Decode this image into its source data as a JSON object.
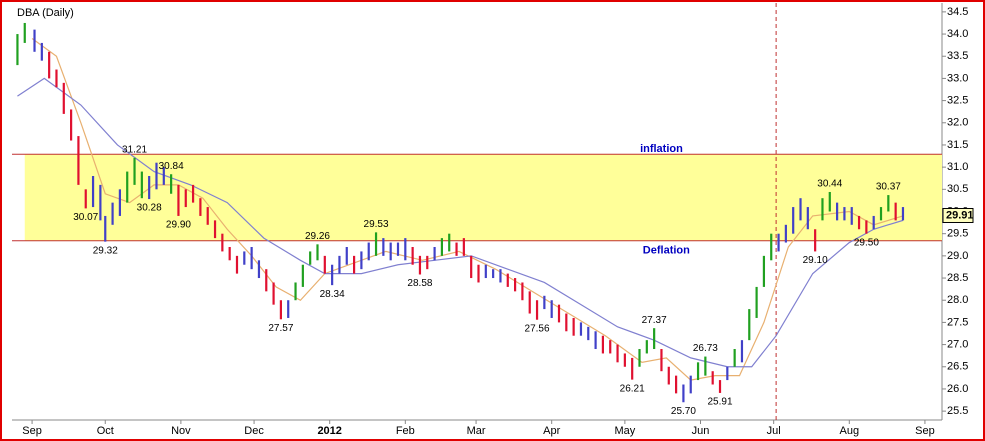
{
  "chart_data": {
    "type": "ohlc",
    "title": "DBA (Daily)",
    "xlim": [
      -7,
      373
    ],
    "ylim": [
      25.3,
      34.7
    ],
    "xticks": [
      {
        "value": 0,
        "label": "Sep"
      },
      {
        "value": 30,
        "label": "Oct"
      },
      {
        "value": 61,
        "label": "Nov"
      },
      {
        "value": 91,
        "label": "Dec"
      },
      {
        "value": 122,
        "label": "2012"
      },
      {
        "value": 153,
        "label": "Feb"
      },
      {
        "value": 182,
        "label": "Mar"
      },
      {
        "value": 213,
        "label": "Apr"
      },
      {
        "value": 243,
        "label": "May"
      },
      {
        "value": 274,
        "label": "Jun"
      },
      {
        "value": 304,
        "label": "Jul"
      },
      {
        "value": 335,
        "label": "Aug"
      },
      {
        "value": 366,
        "label": "Sep"
      }
    ],
    "yticks": [
      {
        "value": 25.5,
        "label": "25.5"
      },
      {
        "value": 26,
        "label": "26.0"
      },
      {
        "value": 26.5,
        "label": "26.5"
      },
      {
        "value": 27,
        "label": "27.0"
      },
      {
        "value": 27.5,
        "label": "27.5"
      },
      {
        "value": 28,
        "label": "28.0"
      },
      {
        "value": 28.5,
        "label": "28.5"
      },
      {
        "value": 29,
        "label": "29.0"
      },
      {
        "value": 29.5,
        "label": "29.5"
      },
      {
        "value": 30,
        "label": "30.0"
      },
      {
        "value": 30.5,
        "label": "30.5"
      },
      {
        "value": 31,
        "label": "31.0"
      },
      {
        "value": 31.5,
        "label": "31.5"
      },
      {
        "value": 32,
        "label": "32.0"
      },
      {
        "value": 32.5,
        "label": "32.5"
      },
      {
        "value": 33,
        "label": "33.0"
      },
      {
        "value": 33.5,
        "label": "33.5"
      },
      {
        "value": 34,
        "label": "34.0"
      },
      {
        "value": 34.5,
        "label": "34.5"
      }
    ],
    "trend_colors": {
      "r": "#e01030",
      "g": "#20a020",
      "b": "#4040c8"
    },
    "bars": {
      "x": [
        -6,
        -3,
        1,
        4,
        7,
        10,
        13,
        16,
        19,
        22,
        25,
        28,
        30,
        33,
        36,
        39,
        42,
        45,
        48,
        51,
        54,
        57,
        60,
        63,
        66,
        69,
        72,
        75,
        78,
        81,
        84,
        87,
        90,
        93,
        96,
        99,
        102,
        105,
        108,
        111,
        114,
        117,
        120,
        123,
        126,
        129,
        132,
        135,
        138,
        141,
        144,
        147,
        150,
        153,
        156,
        159,
        162,
        165,
        168,
        171,
        174,
        177,
        180,
        183,
        186,
        189,
        192,
        195,
        198,
        201,
        204,
        207,
        210,
        213,
        216,
        219,
        222,
        225,
        228,
        231,
        234,
        237,
        240,
        243,
        246,
        249,
        252,
        255,
        258,
        261,
        264,
        267,
        270,
        273,
        276,
        279,
        282,
        285,
        288,
        291,
        294,
        297,
        300,
        303,
        306,
        309,
        312,
        315,
        318,
        321,
        324,
        327,
        330,
        333,
        336,
        339,
        342,
        345,
        348,
        351,
        354,
        357
      ],
      "low": [
        33.3,
        33.8,
        33.6,
        33.4,
        33.0,
        32.8,
        32.2,
        31.6,
        30.6,
        30.07,
        30.1,
        29.8,
        29.32,
        29.7,
        29.9,
        30.2,
        30.6,
        30.3,
        30.28,
        30.5,
        30.6,
        30.4,
        29.9,
        30.1,
        30.2,
        29.9,
        29.7,
        29.4,
        29.1,
        28.9,
        28.6,
        28.8,
        28.7,
        28.5,
        28.2,
        27.9,
        27.57,
        27.6,
        28.0,
        28.3,
        28.8,
        28.9,
        28.6,
        28.34,
        28.6,
        28.8,
        28.6,
        28.7,
        28.9,
        29.0,
        29.0,
        28.9,
        29.0,
        28.9,
        28.8,
        28.58,
        28.7,
        28.9,
        29.0,
        29.1,
        29.0,
        29.0,
        28.5,
        28.4,
        28.5,
        28.5,
        28.4,
        28.3,
        28.2,
        28.0,
        27.7,
        27.56,
        27.8,
        27.6,
        27.5,
        27.3,
        27.2,
        27.2,
        27.1,
        26.9,
        26.8,
        26.8,
        26.6,
        26.5,
        26.21,
        26.5,
        26.8,
        26.9,
        26.4,
        26.1,
        25.9,
        25.7,
        25.9,
        26.2,
        26.3,
        26.1,
        25.91,
        26.2,
        26.5,
        26.6,
        27.1,
        27.6,
        28.3,
        28.9,
        29.1,
        29.3,
        29.5,
        29.8,
        29.6,
        29.1,
        29.8,
        30.0,
        29.8,
        29.8,
        29.7,
        29.6,
        29.5,
        29.6,
        29.8,
        30.0,
        29.8,
        29.8
      ],
      "high": [
        34.0,
        34.25,
        34.1,
        33.8,
        33.6,
        33.2,
        32.9,
        32.3,
        31.7,
        30.5,
        30.8,
        30.6,
        29.9,
        30.2,
        30.5,
        30.9,
        31.21,
        30.9,
        30.8,
        31.1,
        31.0,
        30.84,
        30.6,
        30.5,
        30.6,
        30.3,
        30.1,
        29.8,
        29.5,
        29.2,
        29.0,
        29.1,
        29.2,
        28.9,
        28.7,
        28.4,
        28.0,
        28.0,
        28.4,
        28.8,
        29.1,
        29.26,
        29.0,
        28.8,
        29.0,
        29.2,
        29.0,
        29.1,
        29.3,
        29.53,
        29.4,
        29.3,
        29.3,
        29.4,
        29.2,
        29.0,
        29.0,
        29.2,
        29.4,
        29.5,
        29.3,
        29.4,
        29.0,
        28.8,
        28.8,
        28.7,
        28.7,
        28.6,
        28.5,
        28.4,
        28.2,
        28.0,
        28.1,
        28.0,
        27.9,
        27.7,
        27.6,
        27.5,
        27.4,
        27.3,
        27.2,
        27.1,
        27.0,
        26.8,
        26.7,
        26.9,
        27.1,
        27.37,
        26.9,
        26.5,
        26.3,
        26.1,
        26.3,
        26.6,
        26.73,
        26.4,
        26.2,
        26.5,
        26.9,
        27.1,
        27.8,
        28.3,
        29.0,
        29.5,
        29.5,
        29.7,
        30.1,
        30.3,
        30.1,
        29.6,
        30.3,
        30.44,
        30.2,
        30.1,
        30.1,
        29.9,
        29.8,
        29.9,
        30.1,
        30.37,
        30.2,
        30.1
      ],
      "trend": [
        "g",
        "g",
        "b",
        "b",
        "r",
        "r",
        "r",
        "r",
        "r",
        "r",
        "b",
        "b",
        "b",
        "b",
        "b",
        "g",
        "g",
        "g",
        "b",
        "b",
        "b",
        "g",
        "r",
        "r",
        "r",
        "r",
        "r",
        "r",
        "r",
        "r",
        "r",
        "b",
        "b",
        "b",
        "r",
        "r",
        "r",
        "b",
        "g",
        "g",
        "g",
        "g",
        "r",
        "b",
        "b",
        "b",
        "r",
        "b",
        "b",
        "g",
        "b",
        "b",
        "b",
        "b",
        "r",
        "r",
        "r",
        "b",
        "g",
        "g",
        "r",
        "r",
        "r",
        "r",
        "b",
        "b",
        "b",
        "r",
        "r",
        "r",
        "r",
        "r",
        "b",
        "b",
        "r",
        "r",
        "r",
        "b",
        "b",
        "b",
        "r",
        "r",
        "r",
        "r",
        "r",
        "g",
        "g",
        "g",
        "r",
        "r",
        "r",
        "b",
        "b",
        "g",
        "g",
        "r",
        "r",
        "b",
        "g",
        "b",
        "g",
        "g",
        "g",
        "g",
        "b",
        "b",
        "b",
        "b",
        "b",
        "r",
        "g",
        "g",
        "b",
        "b",
        "b",
        "r",
        "r",
        "b",
        "g",
        "g",
        "r",
        "b"
      ]
    },
    "series": [
      {
        "color": "#e8b070",
        "x": [
          0,
          10,
          20,
          30,
          40,
          50,
          60,
          70,
          80,
          90,
          100,
          110,
          120,
          130,
          145,
          160,
          175,
          190,
          205,
          220,
          235,
          250,
          260,
          270,
          280,
          290,
          300,
          310,
          320,
          335,
          345,
          357
        ],
        "values": [
          33.9,
          33.5,
          32.0,
          30.4,
          30.2,
          30.6,
          30.6,
          30.3,
          29.6,
          29.0,
          28.3,
          28.0,
          28.6,
          28.8,
          29.1,
          28.9,
          29.1,
          28.7,
          28.2,
          27.7,
          27.2,
          26.6,
          26.7,
          26.2,
          26.3,
          26.3,
          27.5,
          29.2,
          29.9,
          30.0,
          29.7,
          29.9
        ]
      },
      {
        "color": "#8080d0",
        "x": [
          -6,
          5,
          20,
          35,
          50,
          65,
          80,
          95,
          110,
          120,
          135,
          150,
          165,
          180,
          195,
          210,
          225,
          240,
          255,
          270,
          285,
          295,
          305,
          320,
          335,
          345,
          357
        ],
        "values": [
          32.6,
          33.0,
          32.4,
          31.5,
          30.9,
          30.6,
          30.2,
          29.4,
          28.9,
          28.6,
          28.6,
          28.8,
          28.9,
          29.0,
          28.7,
          28.4,
          27.9,
          27.4,
          27.1,
          26.7,
          26.5,
          26.5,
          27.2,
          28.6,
          29.3,
          29.6,
          29.8
        ]
      }
    ],
    "band": {
      "low": 29.34,
      "high": 31.29,
      "color": "#ffff99",
      "x_start": -3
    },
    "band_labels": [
      {
        "text": "inflation",
        "value": 31.29,
        "x": 258
      },
      {
        "text": "Deflation",
        "value": 29.34,
        "x": 260
      }
    ],
    "vline": 305,
    "last_price": {
      "value": 29.91,
      "label": "29.91"
    },
    "price_labels": [
      {
        "x": 42,
        "value": 31.21,
        "label": "31.21",
        "position": "above"
      },
      {
        "x": 22,
        "value": 30.07,
        "label": "30.07",
        "position": "below"
      },
      {
        "x": 30,
        "value": 29.32,
        "label": "29.32",
        "position": "below"
      },
      {
        "x": 48,
        "value": 30.28,
        "label": "30.28",
        "position": "below"
      },
      {
        "x": 57,
        "value": 30.84,
        "label": "30.84",
        "position": "above"
      },
      {
        "x": 60,
        "value": 29.9,
        "label": "29.90",
        "position": "below"
      },
      {
        "x": 102,
        "value": 27.57,
        "label": "27.57",
        "position": "below"
      },
      {
        "x": 117,
        "value": 29.26,
        "label": "29.26",
        "position": "above"
      },
      {
        "x": 123,
        "value": 28.34,
        "label": "28.34",
        "position": "below"
      },
      {
        "x": 141,
        "value": 29.53,
        "label": "29.53",
        "position": "above"
      },
      {
        "x": 159,
        "value": 28.58,
        "label": "28.58",
        "position": "below"
      },
      {
        "x": 207,
        "value": 27.56,
        "label": "27.56",
        "position": "below"
      },
      {
        "x": 246,
        "value": 26.21,
        "label": "26.21",
        "position": "below"
      },
      {
        "x": 255,
        "value": 27.37,
        "label": "27.37",
        "position": "above"
      },
      {
        "x": 267,
        "value": 25.7,
        "label": "25.70",
        "position": "below"
      },
      {
        "x": 276,
        "value": 26.73,
        "label": "26.73",
        "position": "above"
      },
      {
        "x": 282,
        "value": 25.91,
        "label": "25.91",
        "position": "below"
      },
      {
        "x": 321,
        "value": 29.1,
        "label": "29.10",
        "position": "below"
      },
      {
        "x": 327,
        "value": 30.44,
        "label": "30.44",
        "position": "above"
      },
      {
        "x": 342,
        "value": 29.5,
        "label": "29.50",
        "position": "below"
      },
      {
        "x": 351,
        "value": 30.37,
        "label": "30.37",
        "position": "above"
      }
    ]
  }
}
